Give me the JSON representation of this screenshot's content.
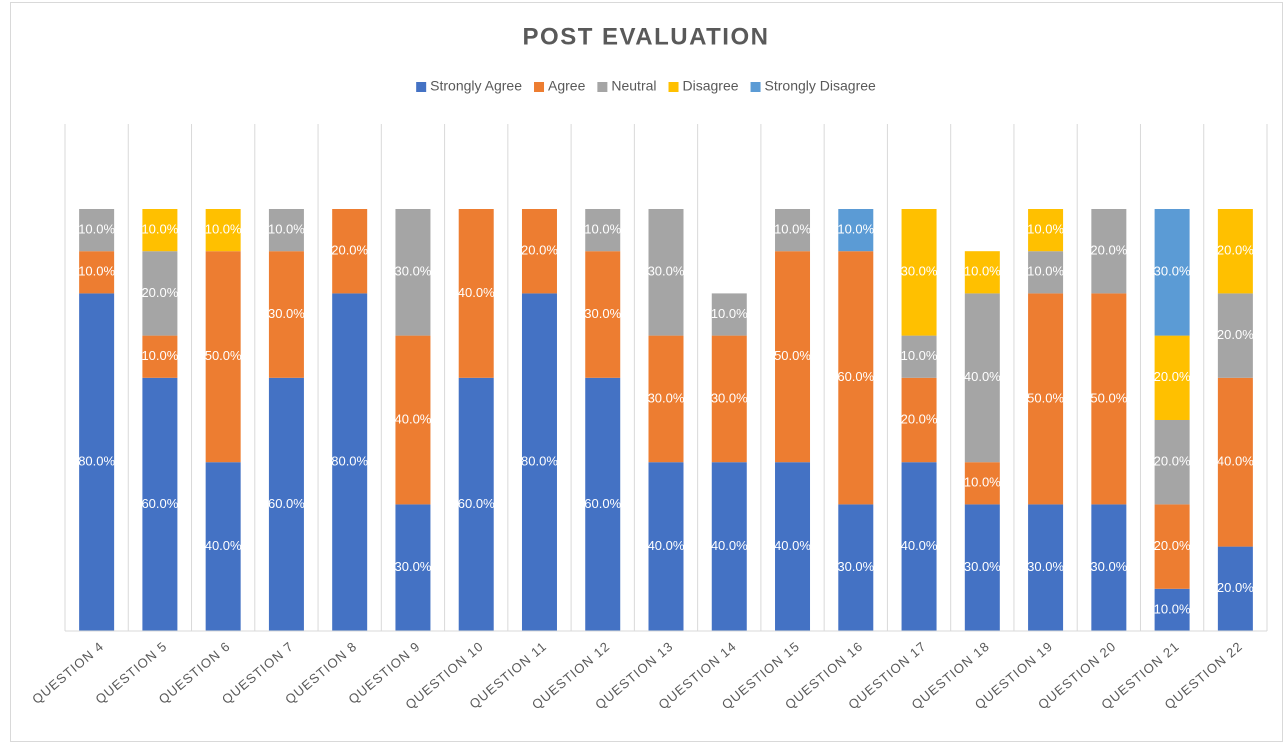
{
  "chart_data": {
    "type": "stacked_bar",
    "title": "POST EVALUATION",
    "categories": [
      "QUESTION 4",
      "QUESTION 5",
      "QUESTION 6",
      "QUESTION 7",
      "QUESTION 8",
      "QUESTION 9",
      "QUESTION 10",
      "QUESTION 11",
      "QUESTION 12",
      "QUESTION 13",
      "QUESTION 14",
      "QUESTION 15",
      "QUESTION 16",
      "QUESTION 17",
      "QUESTION 18",
      "QUESTION 19",
      "QUESTION 20",
      "QUESTION 21",
      "QUESTION 22"
    ],
    "series": [
      {
        "name": "Strongly Agree",
        "color": "#4472c4",
        "values": [
          80,
          60,
          40,
          60,
          80,
          30,
          60,
          80,
          60,
          40,
          40,
          40,
          30,
          40,
          30,
          30,
          30,
          10,
          20
        ],
        "value_labels": [
          "80.0%",
          "60.0%",
          "40.0%",
          "60.0%",
          "80.0%",
          "30.0%",
          "60.0%",
          "80.0%",
          "60.0%",
          "40.0%",
          "40.0%",
          "40.0%",
          "30.0%",
          "40.0%",
          "30.0%",
          "30.0%",
          "30.0%",
          "10.0%",
          "20.0%"
        ]
      },
      {
        "name": "Agree",
        "color": "#ed7d31",
        "values": [
          10,
          10,
          50,
          30,
          20,
          40,
          40,
          20,
          30,
          30,
          30,
          50,
          60,
          20,
          10,
          50,
          50,
          20,
          40
        ],
        "value_labels": [
          "10.0%",
          "10.0%",
          "50.0%",
          "30.0%",
          "20.0%",
          "40.0%",
          "40.0%",
          "20.0%",
          "30.0%",
          "30.0%",
          "30.0%",
          "50.0%",
          "60.0%",
          "20.0%",
          "10.0%",
          "50.0%",
          "50.0%",
          "20.0%",
          "40.0%"
        ]
      },
      {
        "name": "Neutral",
        "color": "#a5a5a5",
        "values": [
          10,
          20,
          null,
          10,
          null,
          30,
          null,
          null,
          10,
          30,
          10,
          10,
          null,
          10,
          40,
          10,
          20,
          20,
          20
        ],
        "value_labels": [
          "10.0%",
          "20.0%",
          null,
          "10.0%",
          null,
          "30.0%",
          null,
          null,
          "10.0%",
          "30.0%",
          "10.0%",
          "10.0%",
          null,
          "10.0%",
          "40.0%",
          "10.0%",
          "20.0%",
          "20.0%",
          "20.0%"
        ]
      },
      {
        "name": "Disagree",
        "color": "#ffc000",
        "values": [
          null,
          10,
          10,
          null,
          null,
          null,
          null,
          null,
          null,
          null,
          null,
          null,
          null,
          30,
          10,
          10,
          null,
          20,
          20
        ],
        "value_labels": [
          null,
          "10.0%",
          "10.0%",
          null,
          null,
          null,
          null,
          null,
          null,
          null,
          null,
          null,
          null,
          "30.0%",
          "10.0%",
          "10.0%",
          null,
          "20.0%",
          "20.0%"
        ]
      },
      {
        "name": "Strongly Disagree",
        "color": "#5b9bd5",
        "values": [
          null,
          null,
          null,
          null,
          null,
          null,
          null,
          null,
          null,
          null,
          null,
          null,
          10,
          null,
          null,
          null,
          null,
          30,
          null
        ],
        "value_labels": [
          null,
          null,
          null,
          null,
          null,
          null,
          null,
          null,
          null,
          null,
          null,
          null,
          "10.0%",
          null,
          null,
          null,
          null,
          "30.0%",
          null
        ]
      }
    ],
    "ylim": [
      0,
      100
    ]
  }
}
